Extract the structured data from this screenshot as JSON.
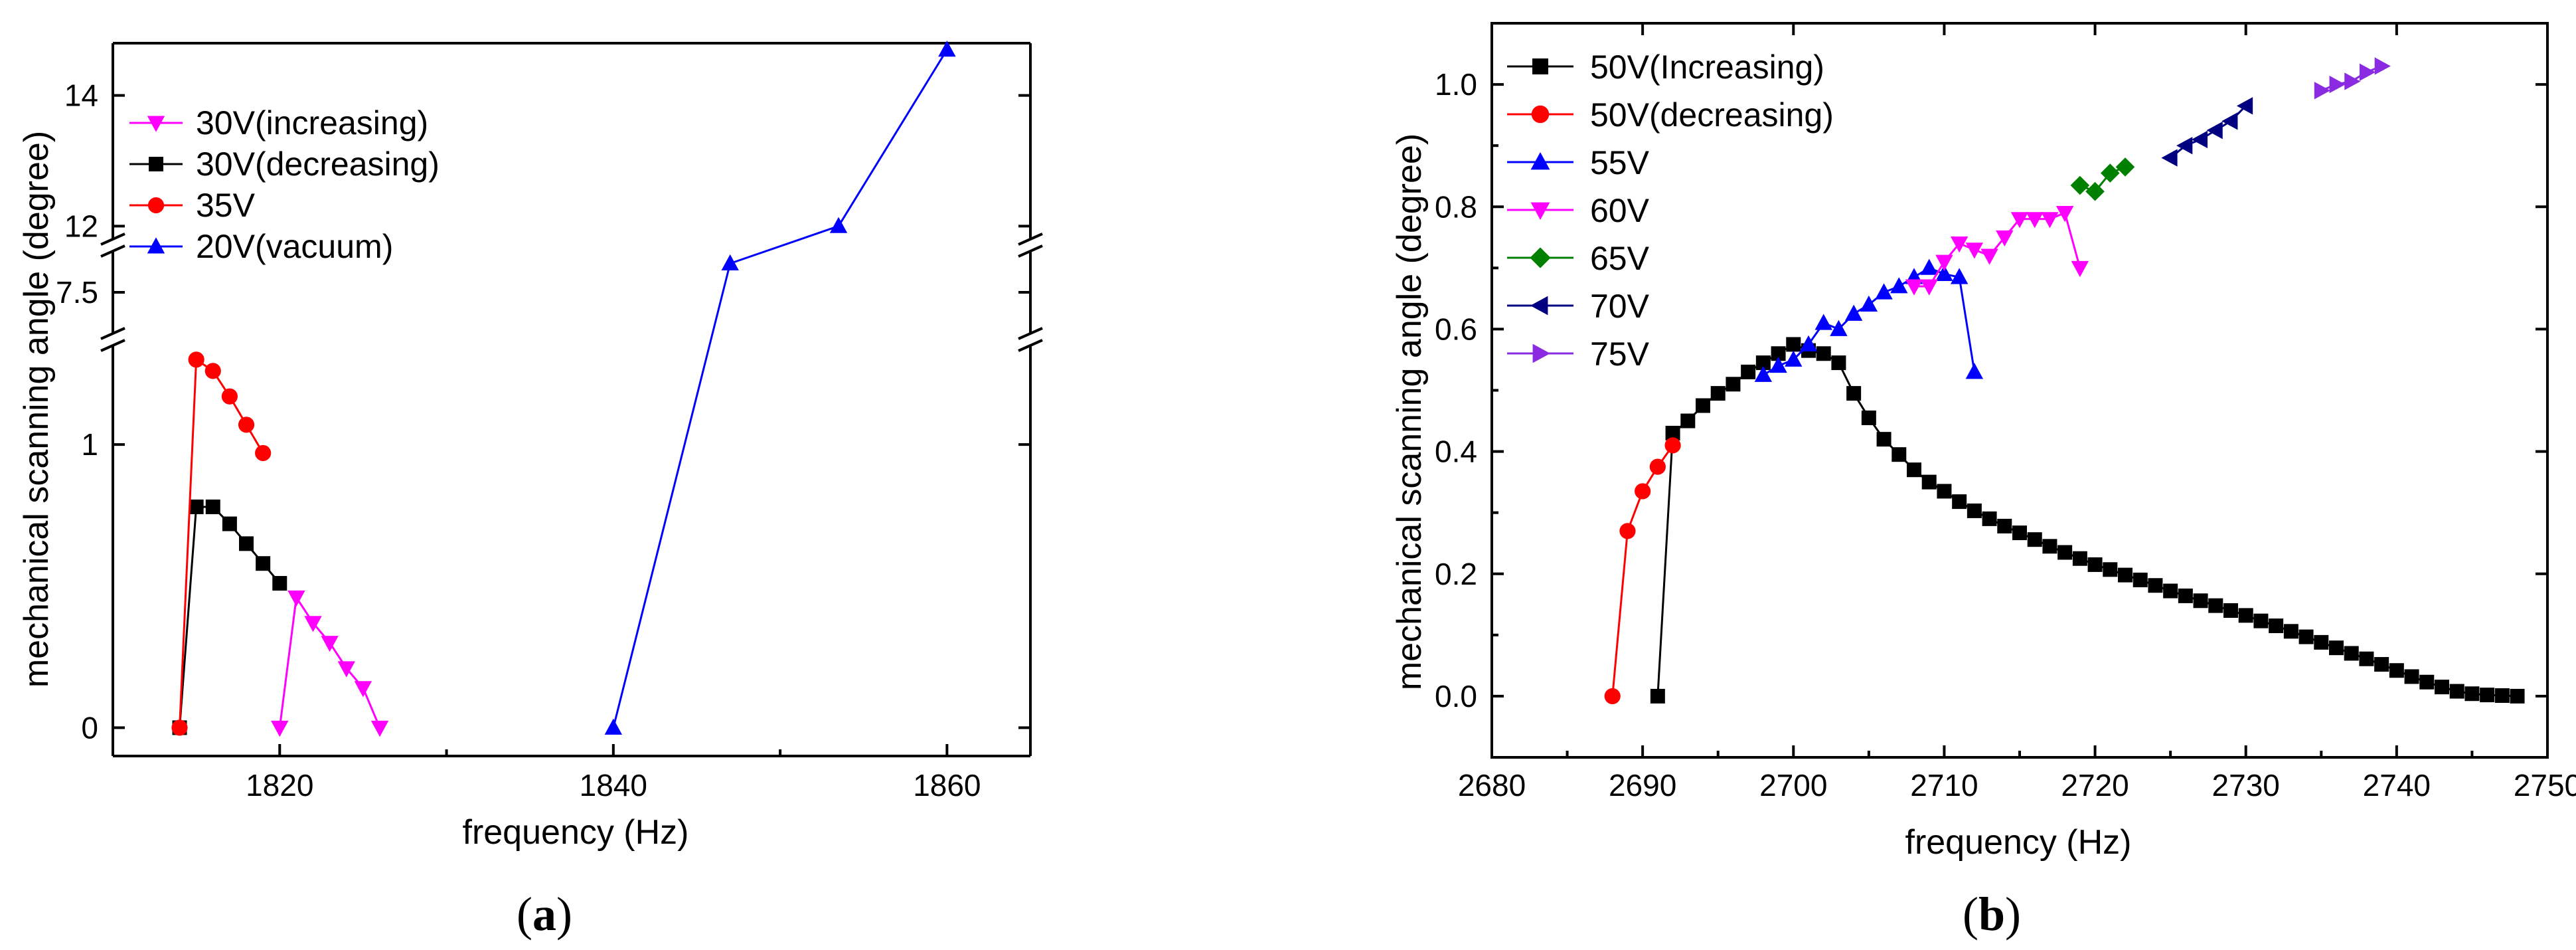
{
  "chart_data": [
    {
      "id": "a",
      "type": "line",
      "panel_label": "a",
      "xlabel": "frequency (Hz)",
      "ylabel": "mechanical scanning angle (degree)",
      "xlim": [
        1810,
        1865
      ],
      "xticks": [
        1820,
        1840,
        1860
      ],
      "broken_y_axis": true,
      "y_segments": [
        {
          "range": [
            -0.1,
            1.35
          ],
          "ticks": [
            0,
            1
          ]
        },
        {
          "range": [
            7.0,
            8.0
          ],
          "ticks": [
            7.5
          ]
        },
        {
          "range": [
            11.8,
            14.8
          ],
          "ticks": [
            12,
            14
          ]
        }
      ],
      "legend_position": "top-left",
      "series": [
        {
          "name": "30V(increasing)",
          "color": "#ff00ff",
          "marker": "triangle-down",
          "x": [
            1820,
            1821,
            1822,
            1823,
            1824,
            1825,
            1826
          ],
          "y": [
            0,
            0.46,
            0.37,
            0.3,
            0.21,
            0.14,
            0
          ]
        },
        {
          "name": "30V(decreasing)",
          "color": "#000000",
          "marker": "square",
          "x": [
            1814,
            1815,
            1816,
            1817,
            1818,
            1819,
            1820
          ],
          "y": [
            0,
            0.78,
            0.78,
            0.72,
            0.65,
            0.58,
            0.51
          ]
        },
        {
          "name": "35V",
          "color": "#ff0000",
          "marker": "circle",
          "x": [
            1814,
            1815,
            1816,
            1817,
            1818,
            1819
          ],
          "y": [
            0,
            1.3,
            1.26,
            1.17,
            1.07,
            0.97
          ]
        },
        {
          "name": "20V(vacuum)",
          "color": "#0000ff",
          "marker": "triangle-up",
          "x": [
            1840,
            1847,
            1853.5,
            1860
          ],
          "y": [
            0,
            7.85,
            12.0,
            14.7
          ]
        }
      ]
    },
    {
      "id": "b",
      "type": "line",
      "panel_label": "b",
      "xlabel": "frequency (Hz)",
      "ylabel": "mechanical scanning angle (degree)",
      "xlim": [
        2680,
        2750
      ],
      "ylim": [
        -0.1,
        1.1
      ],
      "xticks": [
        2680,
        2690,
        2700,
        2710,
        2720,
        2730,
        2740,
        2750
      ],
      "yticks": [
        "0.0",
        "0.2",
        "0.4",
        "0.6",
        "0.8",
        "1.0"
      ],
      "legend_position": "top-left",
      "series": [
        {
          "name": "50V(Increasing)",
          "color": "#000000",
          "marker": "square",
          "x": [
            2691,
            2692,
            2693,
            2694,
            2695,
            2696,
            2697,
            2698,
            2699,
            2700,
            2701,
            2702,
            2703,
            2704,
            2705,
            2706,
            2707,
            2708,
            2709,
            2710,
            2711,
            2712,
            2713,
            2714,
            2715,
            2716,
            2717,
            2718,
            2719,
            2720,
            2721,
            2722,
            2723,
            2724,
            2725,
            2726,
            2727,
            2728,
            2729,
            2730,
            2731,
            2732,
            2733,
            2734,
            2735,
            2736,
            2737,
            2738,
            2739,
            2740,
            2741,
            2742,
            2743,
            2744,
            2745,
            2746,
            2747,
            2748
          ],
          "y": [
            0,
            0.43,
            0.45,
            0.475,
            0.495,
            0.51,
            0.53,
            0.545,
            0.56,
            0.575,
            0.565,
            0.56,
            0.545,
            0.495,
            0.455,
            0.42,
            0.395,
            0.37,
            0.35,
            0.335,
            0.318,
            0.303,
            0.29,
            0.278,
            0.267,
            0.256,
            0.245,
            0.235,
            0.225,
            0.215,
            0.207,
            0.198,
            0.19,
            0.181,
            0.172,
            0.164,
            0.156,
            0.148,
            0.14,
            0.132,
            0.123,
            0.115,
            0.106,
            0.097,
            0.088,
            0.079,
            0.07,
            0.061,
            0.052,
            0.042,
            0.032,
            0.023,
            0.015,
            0.008,
            0.004,
            0.002,
            0.001,
            0.0
          ]
        },
        {
          "name": "50V(decreasing)",
          "color": "#ff0000",
          "marker": "circle",
          "x": [
            2688,
            2689,
            2690,
            2691,
            2692
          ],
          "y": [
            0,
            0.27,
            0.335,
            0.375,
            0.41
          ]
        },
        {
          "name": "55V",
          "color": "#0000ff",
          "marker": "triangle-up",
          "x": [
            2698,
            2699,
            2700,
            2701,
            2702,
            2703,
            2704,
            2705,
            2706,
            2707,
            2708,
            2709,
            2710,
            2711,
            2712
          ],
          "y": [
            0.525,
            0.54,
            0.55,
            0.575,
            0.61,
            0.6,
            0.625,
            0.64,
            0.66,
            0.67,
            0.685,
            0.7,
            0.69,
            0.685,
            0.53
          ]
        },
        {
          "name": "60V",
          "color": "#ff00ff",
          "marker": "triangle-down",
          "x": [
            2708,
            2709,
            2710,
            2711,
            2712,
            2713,
            2714,
            2715,
            2716,
            2717,
            2718,
            2719
          ],
          "y": [
            0.67,
            0.67,
            0.71,
            0.74,
            0.73,
            0.72,
            0.75,
            0.78,
            0.78,
            0.78,
            0.79,
            0.7
          ]
        },
        {
          "name": "65V",
          "color": "#008000",
          "marker": "diamond",
          "x": [
            2719,
            2720,
            2721,
            2722
          ],
          "y": [
            0.835,
            0.825,
            0.855,
            0.865
          ]
        },
        {
          "name": "70V",
          "color": "#000080",
          "marker": "triangle-left",
          "x": [
            2725,
            2726,
            2727,
            2728,
            2729,
            2730
          ],
          "y": [
            0.88,
            0.9,
            0.91,
            0.925,
            0.94,
            0.965
          ]
        },
        {
          "name": "75V",
          "color": "#8a2be2",
          "marker": "triangle-right",
          "x": [
            2735,
            2736,
            2737,
            2738,
            2739
          ],
          "y": [
            0.99,
            1.0,
            1.005,
            1.02,
            1.03
          ]
        }
      ]
    }
  ]
}
